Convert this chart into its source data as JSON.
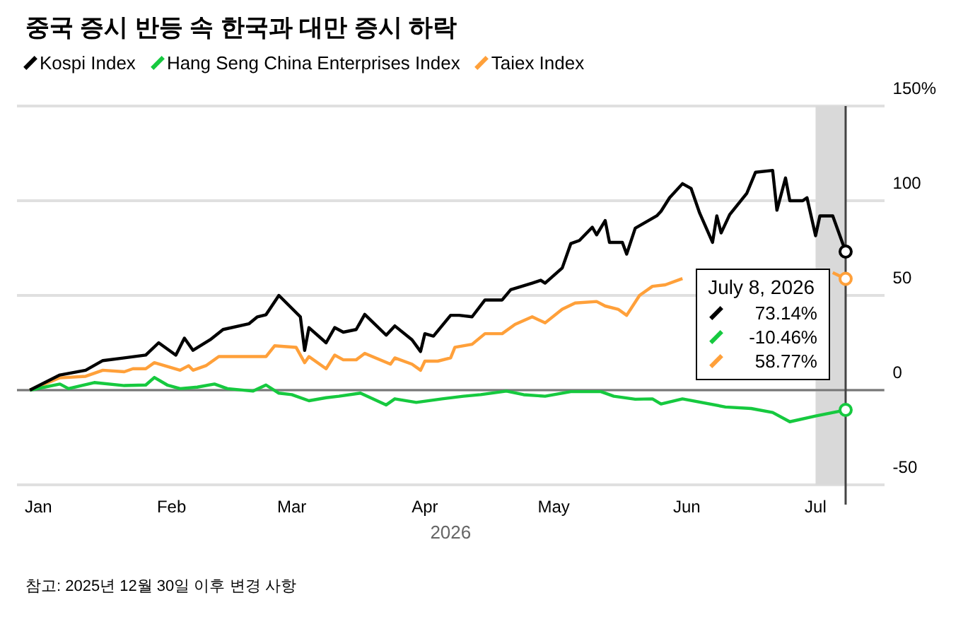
{
  "chart_data": {
    "type": "line",
    "title": "중국 증시 반등 속 한국과 대만 증시 하락",
    "xlabel": "2026",
    "legend": "top left",
    "grid": "y",
    "line_style": "solid",
    "xlim": [
      "2025-12-27",
      "2026-07-17"
    ],
    "xticks": [
      {
        "value": "2026-01-01",
        "label": "Jan"
      },
      {
        "value": "2026-02-01",
        "label": "Feb"
      },
      {
        "value": "2026-03-01",
        "label": "Mar"
      },
      {
        "value": "2026-04-01",
        "label": "Apr"
      },
      {
        "value": "2026-05-01",
        "label": "May"
      },
      {
        "value": "2026-06-01",
        "label": "Jun"
      },
      {
        "value": "2026-07-01",
        "label": "Jul"
      }
    ],
    "ylim": [
      -50,
      150
    ],
    "yticks": [
      -50,
      0,
      50,
      100,
      {
        "value": 150,
        "label": "150%"
      }
    ],
    "series": [
      {
        "name": "Kospi Index",
        "color": "#000000",
        "x": [
          "2025-12-30",
          "2026-01-06",
          "2026-01-12",
          "2026-01-16",
          "2026-01-21",
          "2026-01-26",
          "2026-01-29",
          "2026-02-02",
          "2026-02-04",
          "2026-02-06",
          "2026-02-10",
          "2026-02-13",
          "2026-02-19",
          "2026-02-21",
          "2026-02-23",
          "2026-02-26",
          "2026-03-03",
          "2026-03-04",
          "2026-03-05",
          "2026-03-09",
          "2026-03-11",
          "2026-03-13",
          "2026-03-16",
          "2026-03-18",
          "2026-03-23",
          "2026-03-25",
          "2026-03-29",
          "2026-03-31",
          "2026-04-01",
          "2026-04-03",
          "2026-04-07",
          "2026-04-09",
          "2026-04-12",
          "2026-04-15",
          "2026-04-19",
          "2026-04-21",
          "2026-04-26",
          "2026-04-28",
          "2026-04-29",
          "2026-05-03",
          "2026-05-05",
          "2026-05-07",
          "2026-05-10",
          "2026-05-11",
          "2026-05-13",
          "2026-05-14",
          "2026-05-17",
          "2026-05-18",
          "2026-05-20",
          "2026-05-25",
          "2026-05-26",
          "2026-05-28",
          "2026-05-31",
          "2026-06-02",
          "2026-06-04",
          "2026-06-07",
          "2026-06-08",
          "2026-06-09",
          "2026-06-11",
          "2026-06-15",
          "2026-06-17",
          "2026-06-21",
          "2026-06-22",
          "2026-06-24",
          "2026-06-25",
          "2026-06-28",
          "2026-06-29",
          "2026-07-01",
          "2026-07-02",
          "2026-07-05",
          "2026-07-08"
        ],
        "values": [
          0,
          8,
          10.5,
          15.6,
          17,
          18.5,
          25,
          18.5,
          27.4,
          21,
          26.6,
          32,
          35,
          38.7,
          39.8,
          50,
          38.7,
          21,
          33,
          25,
          33,
          30.6,
          32,
          40,
          29,
          33.9,
          26.6,
          20.4,
          29.8,
          28.5,
          39.5,
          39.5,
          38.7,
          47.6,
          47.6,
          53,
          56.5,
          58,
          56.5,
          64.5,
          77.4,
          79,
          86,
          82,
          89.5,
          78,
          78,
          71.8,
          85.5,
          92,
          94.4,
          101.6,
          109,
          106.5,
          93.5,
          78,
          92,
          83,
          92.7,
          104,
          115,
          116,
          95,
          112,
          100,
          100,
          101.6,
          81.5,
          92,
          92,
          73.14
        ]
      },
      {
        "name": "Hang Seng China Enterprises Index",
        "color": "#16c93f",
        "x": [
          "2025-12-30",
          "2026-01-06",
          "2026-01-08",
          "2026-01-14",
          "2026-01-21",
          "2026-01-26",
          "2026-01-28",
          "2026-01-31",
          "2026-02-03",
          "2026-02-07",
          "2026-02-11",
          "2026-02-14",
          "2026-02-20",
          "2026-02-23",
          "2026-02-26",
          "2026-03-01",
          "2026-03-05",
          "2026-03-09",
          "2026-03-12",
          "2026-03-17",
          "2026-03-23",
          "2026-03-25",
          "2026-03-30",
          "2026-04-05",
          "2026-04-10",
          "2026-04-14",
          "2026-04-20",
          "2026-04-24",
          "2026-04-29",
          "2026-05-05",
          "2026-05-12",
          "2026-05-15",
          "2026-05-20",
          "2026-05-24",
          "2026-05-26",
          "2026-05-31",
          "2026-06-10",
          "2026-06-16",
          "2026-06-21",
          "2026-06-25",
          "2026-07-01",
          "2026-07-08"
        ],
        "values": [
          0,
          3.2,
          0.8,
          4,
          2.4,
          2.7,
          6.7,
          2.7,
          0.8,
          1.6,
          3.2,
          0.8,
          -0.5,
          2.7,
          -1.6,
          -2.4,
          -5.6,
          -4,
          -3.2,
          -1.6,
          -7.8,
          -4.6,
          -6.5,
          -4.6,
          -3.2,
          -2.4,
          -0.5,
          -2.4,
          -3.2,
          -0.8,
          -0.8,
          -3.2,
          -4.8,
          -4.6,
          -7.3,
          -4.6,
          -8.9,
          -9.7,
          -11.8,
          -16.7,
          -13.7,
          -10.46
        ]
      },
      {
        "name": "Taiex Index",
        "color": "#ffa03a",
        "x": [
          "2025-12-30",
          "2026-01-06",
          "2026-01-12",
          "2026-01-16",
          "2026-01-21",
          "2026-01-23",
          "2026-01-26",
          "2026-01-28",
          "2026-02-03",
          "2026-02-05",
          "2026-02-06",
          "2026-02-09",
          "2026-02-12",
          "2026-02-23",
          "2026-02-25",
          "2026-03-02",
          "2026-03-04",
          "2026-03-05",
          "2026-03-09",
          "2026-03-11",
          "2026-03-13",
          "2026-03-16",
          "2026-03-18",
          "2026-03-24",
          "2026-03-25",
          "2026-03-29",
          "2026-03-31",
          "2026-04-01",
          "2026-04-04",
          "2026-04-07",
          "2026-04-08",
          "2026-04-12",
          "2026-04-15",
          "2026-04-19",
          "2026-04-22",
          "2026-04-26",
          "2026-04-29",
          "2026-05-03",
          "2026-05-06",
          "2026-05-11",
          "2026-05-13",
          "2026-05-16",
          "2026-05-18",
          "2026-05-21",
          "2026-05-24",
          "2026-05-27",
          "2026-05-31",
          "2026-06-10",
          "2026-06-21",
          "2026-06-28",
          "2026-07-05",
          "2026-07-08"
        ],
        "values": [
          0,
          6.5,
          7.3,
          10.5,
          9.7,
          11.3,
          11.3,
          14.5,
          10.5,
          12.9,
          10.5,
          12.9,
          17.7,
          17.7,
          23.4,
          22.6,
          14.5,
          17.7,
          11.3,
          18.5,
          16,
          16,
          19.4,
          13.7,
          17,
          13.7,
          10.5,
          15.3,
          15.3,
          17,
          22.6,
          24.2,
          29.8,
          29.8,
          34.7,
          38.7,
          35.5,
          42.7,
          46,
          46.8,
          44.4,
          42.7,
          39.5,
          50,
          54.8,
          55.6,
          58.9,
          null,
          null,
          null,
          62,
          58.77
        ]
      }
    ],
    "bands": [
      {
        "axis": "x",
        "from": "2026-07-01",
        "to": "2026-07-08",
        "color": "#d9d9d9"
      }
    ],
    "ref_lines": [
      {
        "axis": "y",
        "value": 0,
        "color": "#777777"
      },
      {
        "axis": "x",
        "value": "2026-07-08",
        "color": "#444444"
      }
    ],
    "annotations": [
      "참고: 2025년 12월 30일 이후 변경 사항",
      {
        "text": "July 8, 2026",
        "x": "2026-07-08"
      },
      "73.14%",
      "-10.46%",
      "58.77%"
    ]
  }
}
